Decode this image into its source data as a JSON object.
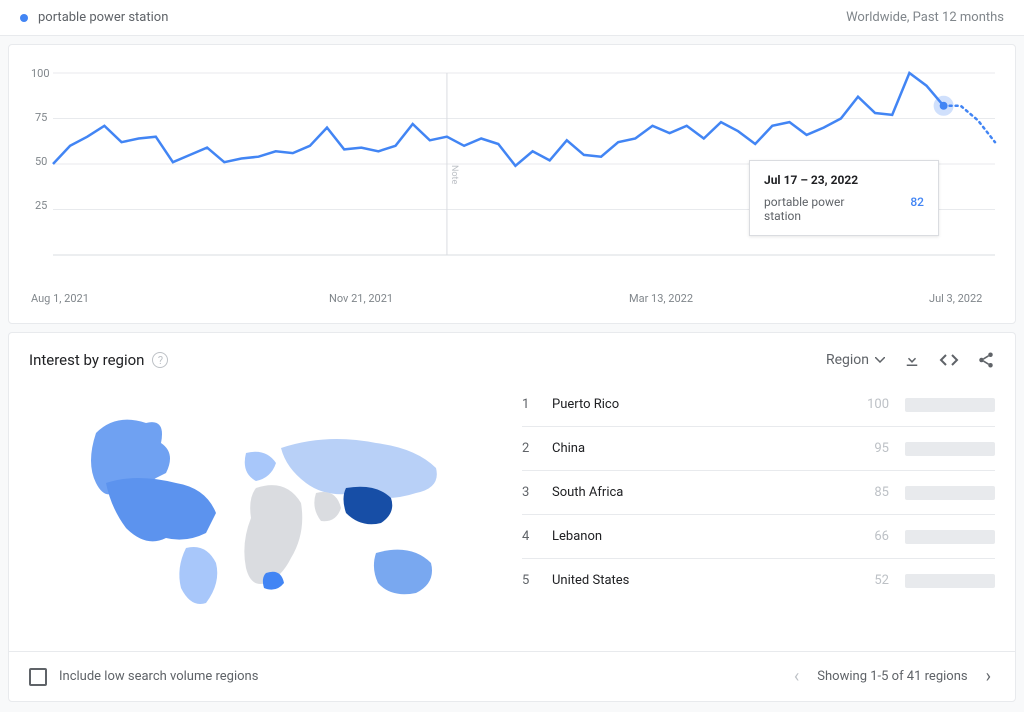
{
  "header": {
    "term": "portable power station",
    "scope": "Worldwide, Past 12 months",
    "dot_color": "#4285f4"
  },
  "chart": {
    "type": "line",
    "line_color": "#4285f4",
    "grid_color": "#e8eaed",
    "background_color": "#ffffff",
    "ylim": [
      0,
      100
    ],
    "yticks": [
      25,
      50,
      75,
      100
    ],
    "xticks": [
      "Aug 1, 2021",
      "Nov 21, 2021",
      "Mar 13, 2022",
      "Jul 3, 2022"
    ],
    "note_label": "Note",
    "values": [
      50,
      60,
      65,
      71,
      62,
      64,
      65,
      51,
      55,
      59,
      51,
      53,
      54,
      57,
      56,
      60,
      70,
      58,
      59,
      57,
      60,
      72,
      63,
      65,
      60,
      64,
      61,
      49,
      57,
      52,
      63,
      55,
      54,
      62,
      64,
      71,
      67,
      71,
      64,
      73,
      68,
      61,
      71,
      73,
      66,
      70,
      75,
      87,
      78,
      77,
      100,
      93,
      82
    ],
    "dashed_tail": [
      82,
      74,
      62
    ],
    "hover_index": 52,
    "tooltip": {
      "date": "Jul 17 – 23, 2022",
      "label": "portable power station",
      "value": "82"
    }
  },
  "region": {
    "title": "Interest by region",
    "selector_label": "Region",
    "rows": [
      {
        "rank": "1",
        "name": "Puerto Rico",
        "value": "100",
        "pct": 100
      },
      {
        "rank": "2",
        "name": "China",
        "value": "95",
        "pct": 95
      },
      {
        "rank": "3",
        "name": "South Africa",
        "value": "85",
        "pct": 85
      },
      {
        "rank": "4",
        "name": "Lebanon",
        "value": "66",
        "pct": 66
      },
      {
        "rank": "5",
        "name": "United States",
        "value": "52",
        "pct": 52
      }
    ],
    "map_colors": {
      "high": "#4285f4",
      "dark": "#174ea6",
      "light": "#a8c7fa",
      "none": "#dadce0"
    }
  },
  "footer": {
    "checkbox_label": "Include low search volume regions",
    "pager_text": "Showing 1-5 of 41 regions"
  }
}
